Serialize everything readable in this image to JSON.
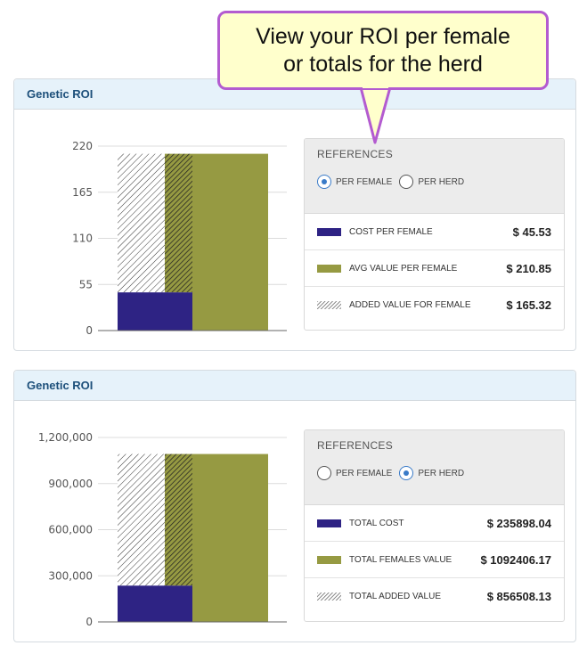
{
  "callout": {
    "line1": "View your ROI per female",
    "line2": "or totals for the herd"
  },
  "colors": {
    "cost": "#2e2384",
    "value": "#969a42",
    "callout_border": "#b35bd0",
    "callout_fill": "#ffffcc",
    "radio_selected": "#3a7bc8"
  },
  "panels": [
    {
      "title": "Genetic ROI",
      "references": {
        "title": "REFERENCES",
        "radio_options": [
          {
            "label": "PER FEMALE",
            "selected": true
          },
          {
            "label": "PER HERD",
            "selected": false
          }
        ],
        "rows": [
          {
            "swatch": "solid-blue-icon",
            "label": "COST PER FEMALE",
            "value": "$ 45.53"
          },
          {
            "swatch": "solid-olive-icon",
            "label": "AVG VALUE PER FEMALE",
            "value": "$ 210.85"
          },
          {
            "swatch": "hatched-icon",
            "label": "ADDED VALUE FOR FEMALE",
            "value": "$ 165.32"
          }
        ]
      }
    },
    {
      "title": "Genetic ROI",
      "references": {
        "title": "REFERENCES",
        "radio_options": [
          {
            "label": "PER FEMALE",
            "selected": false
          },
          {
            "label": "PER HERD",
            "selected": true
          }
        ],
        "rows": [
          {
            "swatch": "solid-blue-icon",
            "label": "TOTAL COST",
            "value": "$ 235898.04"
          },
          {
            "swatch": "solid-olive-icon",
            "label": "TOTAL FEMALES VALUE",
            "value": "$ 1092406.17"
          },
          {
            "swatch": "hatched-icon",
            "label": "TOTAL ADDED VALUE",
            "value": "$ 856508.13"
          }
        ]
      }
    }
  ],
  "chart_data": [
    {
      "type": "bar",
      "stacked": true,
      "categories": [
        "",
        ""
      ],
      "series": [
        {
          "values": [
            45.53,
            0
          ]
        },
        {
          "values": [
            165.32,
            0
          ]
        },
        {
          "values": [
            0,
            210.85
          ]
        }
      ],
      "ylim": [
        0,
        220
      ],
      "yticks": [
        "0",
        "55",
        "110",
        "165",
        "220"
      ],
      "grid": true
    },
    {
      "type": "bar",
      "stacked": true,
      "categories": [
        "",
        ""
      ],
      "series": [
        {
          "values": [
            235898.04,
            0
          ]
        },
        {
          "values": [
            856508.13,
            0
          ]
        },
        {
          "values": [
            0,
            1092406.17
          ]
        }
      ],
      "ylim": [
        0,
        1200000
      ],
      "yticks": [
        "0",
        "300,000",
        "600,000",
        "900,000",
        "1,200,000"
      ],
      "grid": true
    }
  ]
}
